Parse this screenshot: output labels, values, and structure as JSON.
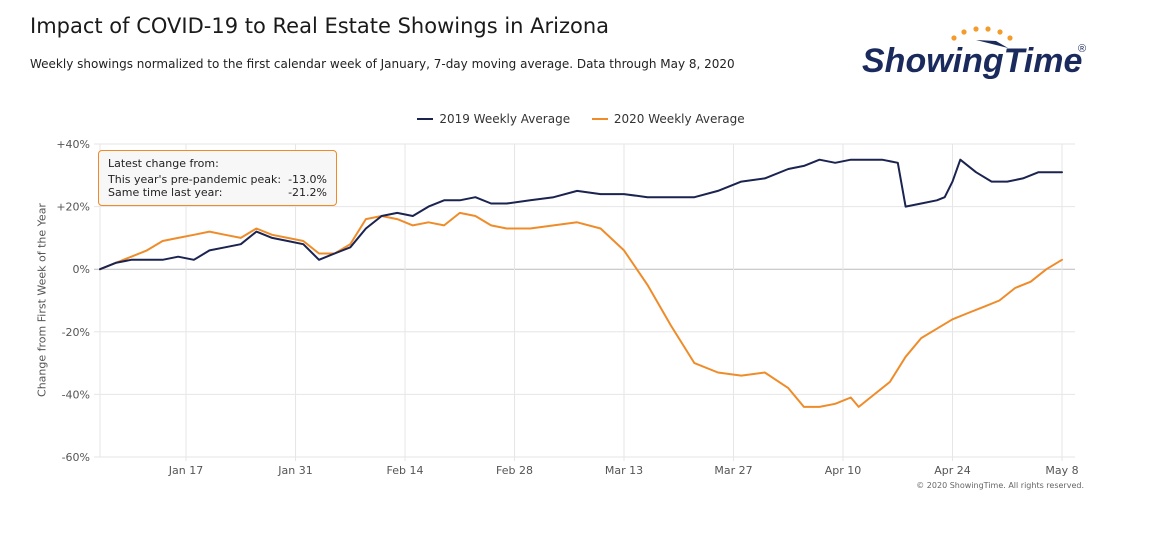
{
  "header": {
    "title": "Impact of COVID-19 to Real Estate Showings in Arizona",
    "subtitle": "Weekly showings normalized to the first calendar week of January, 7-day moving average. Data through May 8, 2020"
  },
  "logo": {
    "text": "ShowingTime",
    "registered": "®",
    "color": "#1b2a5c",
    "accent": "#f39c2c"
  },
  "tooltip": {
    "heading": "Latest change from:",
    "rows": [
      {
        "label": "This year's pre-pandemic peak:",
        "value": "-13.0%"
      },
      {
        "label": "Same time last year:",
        "value": "-21.2%"
      }
    ]
  },
  "copyright": "© 2020 ShowingTime. All rights reserved.",
  "colors": {
    "series2019": "#1b2350",
    "series2020": "#ef8c2a",
    "grid": "#e6e6e6",
    "zero": "#bbbbbb"
  },
  "chart_data": {
    "type": "line",
    "xlabel": "",
    "ylabel": "Change from First Week of the Year",
    "ylim": [
      -60,
      40
    ],
    "yticks": [
      40,
      20,
      0,
      -20,
      -40,
      -60
    ],
    "ytick_labels": [
      "+40%",
      "+20%",
      "0%",
      "-20%",
      "-40%",
      "-60%"
    ],
    "xlim": [
      "2020-01-06",
      "2020-05-08"
    ],
    "xticks": [
      "2020-01-17",
      "2020-01-31",
      "2020-02-14",
      "2020-02-28",
      "2020-03-13",
      "2020-03-27",
      "2020-04-10",
      "2020-04-24",
      "2020-05-08"
    ],
    "xtick_labels": [
      "Jan 17",
      "Jan 31",
      "Feb 14",
      "Feb 28",
      "Mar 13",
      "Mar 27",
      "Apr 10",
      "Apr 24",
      "May 8"
    ],
    "grid": true,
    "legend_position": "top-center",
    "series": [
      {
        "name": "2019 Weekly Average",
        "points": [
          [
            "2020-01-06",
            0
          ],
          [
            "2020-01-08",
            2
          ],
          [
            "2020-01-10",
            3
          ],
          [
            "2020-01-12",
            3
          ],
          [
            "2020-01-14",
            3
          ],
          [
            "2020-01-16",
            4
          ],
          [
            "2020-01-18",
            3
          ],
          [
            "2020-01-20",
            6
          ],
          [
            "2020-01-22",
            7
          ],
          [
            "2020-01-24",
            8
          ],
          [
            "2020-01-26",
            12
          ],
          [
            "2020-01-28",
            10
          ],
          [
            "2020-01-30",
            9
          ],
          [
            "2020-02-01",
            8
          ],
          [
            "2020-02-03",
            3
          ],
          [
            "2020-02-05",
            5
          ],
          [
            "2020-02-07",
            7
          ],
          [
            "2020-02-09",
            13
          ],
          [
            "2020-02-11",
            17
          ],
          [
            "2020-02-13",
            18
          ],
          [
            "2020-02-15",
            17
          ],
          [
            "2020-02-17",
            20
          ],
          [
            "2020-02-19",
            22
          ],
          [
            "2020-02-21",
            22
          ],
          [
            "2020-02-23",
            23
          ],
          [
            "2020-02-25",
            21
          ],
          [
            "2020-02-27",
            21
          ],
          [
            "2020-03-01",
            22
          ],
          [
            "2020-03-04",
            23
          ],
          [
            "2020-03-07",
            25
          ],
          [
            "2020-03-10",
            24
          ],
          [
            "2020-03-13",
            24
          ],
          [
            "2020-03-16",
            23
          ],
          [
            "2020-03-19",
            23
          ],
          [
            "2020-03-22",
            23
          ],
          [
            "2020-03-25",
            25
          ],
          [
            "2020-03-28",
            28
          ],
          [
            "2020-03-31",
            29
          ],
          [
            "2020-04-03",
            32
          ],
          [
            "2020-04-05",
            33
          ],
          [
            "2020-04-07",
            35
          ],
          [
            "2020-04-09",
            34
          ],
          [
            "2020-04-11",
            35
          ],
          [
            "2020-04-13",
            35
          ],
          [
            "2020-04-15",
            35
          ],
          [
            "2020-04-17",
            34
          ],
          [
            "2020-04-18",
            20
          ],
          [
            "2020-04-20",
            21
          ],
          [
            "2020-04-22",
            22
          ],
          [
            "2020-04-23",
            23
          ],
          [
            "2020-04-24",
            28
          ],
          [
            "2020-04-25",
            35
          ],
          [
            "2020-04-27",
            31
          ],
          [
            "2020-04-29",
            28
          ],
          [
            "2020-05-01",
            28
          ],
          [
            "2020-05-03",
            29
          ],
          [
            "2020-05-05",
            31
          ],
          [
            "2020-05-08",
            31
          ]
        ]
      },
      {
        "name": "2020 Weekly Average",
        "points": [
          [
            "2020-01-06",
            0
          ],
          [
            "2020-01-08",
            2
          ],
          [
            "2020-01-10",
            4
          ],
          [
            "2020-01-12",
            6
          ],
          [
            "2020-01-14",
            9
          ],
          [
            "2020-01-16",
            10
          ],
          [
            "2020-01-18",
            11
          ],
          [
            "2020-01-20",
            12
          ],
          [
            "2020-01-22",
            11
          ],
          [
            "2020-01-24",
            10
          ],
          [
            "2020-01-26",
            13
          ],
          [
            "2020-01-28",
            11
          ],
          [
            "2020-01-30",
            10
          ],
          [
            "2020-02-01",
            9
          ],
          [
            "2020-02-03",
            5
          ],
          [
            "2020-02-05",
            5
          ],
          [
            "2020-02-07",
            8
          ],
          [
            "2020-02-09",
            16
          ],
          [
            "2020-02-11",
            17
          ],
          [
            "2020-02-13",
            16
          ],
          [
            "2020-02-15",
            14
          ],
          [
            "2020-02-17",
            15
          ],
          [
            "2020-02-19",
            14
          ],
          [
            "2020-02-21",
            18
          ],
          [
            "2020-02-23",
            17
          ],
          [
            "2020-02-25",
            14
          ],
          [
            "2020-02-27",
            13
          ],
          [
            "2020-03-01",
            13
          ],
          [
            "2020-03-04",
            14
          ],
          [
            "2020-03-07",
            15
          ],
          [
            "2020-03-10",
            13
          ],
          [
            "2020-03-13",
            6
          ],
          [
            "2020-03-16",
            -5
          ],
          [
            "2020-03-19",
            -18
          ],
          [
            "2020-03-22",
            -30
          ],
          [
            "2020-03-25",
            -33
          ],
          [
            "2020-03-28",
            -34
          ],
          [
            "2020-03-31",
            -33
          ],
          [
            "2020-04-03",
            -38
          ],
          [
            "2020-04-05",
            -44
          ],
          [
            "2020-04-07",
            -44
          ],
          [
            "2020-04-09",
            -43
          ],
          [
            "2020-04-11",
            -41
          ],
          [
            "2020-04-12",
            -44
          ],
          [
            "2020-04-14",
            -40
          ],
          [
            "2020-04-16",
            -36
          ],
          [
            "2020-04-18",
            -28
          ],
          [
            "2020-04-20",
            -22
          ],
          [
            "2020-04-22",
            -19
          ],
          [
            "2020-04-24",
            -16
          ],
          [
            "2020-04-26",
            -14
          ],
          [
            "2020-04-28",
            -12
          ],
          [
            "2020-04-30",
            -10
          ],
          [
            "2020-05-02",
            -6
          ],
          [
            "2020-05-04",
            -4
          ],
          [
            "2020-05-06",
            0
          ],
          [
            "2020-05-08",
            3
          ]
        ]
      }
    ]
  }
}
